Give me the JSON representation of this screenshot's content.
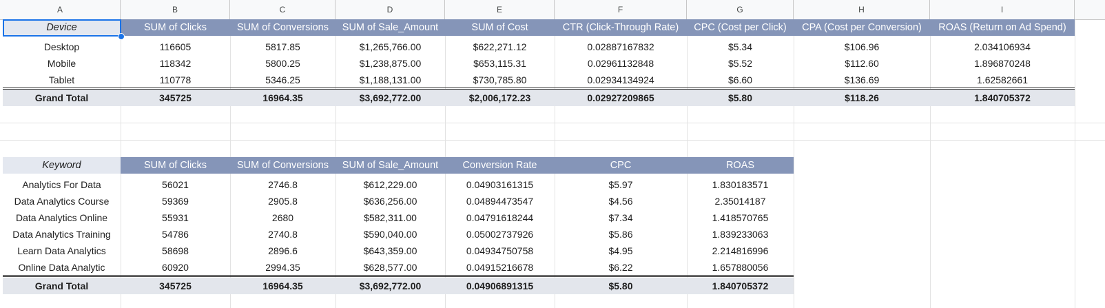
{
  "columns": [
    "A",
    "B",
    "C",
    "D",
    "E",
    "F",
    "G",
    "H",
    "I"
  ],
  "device_table": {
    "headers": [
      "Device",
      "SUM of Clicks",
      "SUM of Conversions",
      "SUM of Sale_Amount",
      "SUM of Cost",
      "CTR (Click-Through Rate)",
      "CPC (Cost per Click)",
      "CPA (Cost per Conversion)",
      "ROAS (Return on Ad Spend)"
    ],
    "rows": [
      [
        "Desktop",
        "116605",
        "5817.85",
        "$1,265,766.00",
        "$622,271.12",
        "0.02887167832",
        "$5.34",
        "$106.96",
        "2.034106934"
      ],
      [
        "Mobile",
        "118342",
        "5800.25",
        "$1,238,875.00",
        "$653,115.31",
        "0.02961132848",
        "$5.52",
        "$112.60",
        "1.896870248"
      ],
      [
        "Tablet",
        "110778",
        "5346.25",
        "$1,188,131.00",
        "$730,785.80",
        "0.02934134924",
        "$6.60",
        "$136.69",
        "1.62582661"
      ]
    ],
    "total": [
      "Grand Total",
      "345725",
      "16964.35",
      "$3,692,772.00",
      "$2,006,172.23",
      "0.02927209865",
      "$5.80",
      "$118.26",
      "1.840705372"
    ]
  },
  "keyword_table": {
    "headers": [
      "Keyword",
      "SUM of Clicks",
      "SUM of Conversions",
      "SUM of Sale_Amount",
      "Conversion Rate",
      "CPC",
      "ROAS"
    ],
    "rows": [
      [
        "Analytics For Data",
        "56021",
        "2746.8",
        "$612,229.00",
        "0.04903161315",
        "$5.97",
        "1.830183571"
      ],
      [
        "Data Analytics Course",
        "59369",
        "2905.8",
        "$636,256.00",
        "0.04894473547",
        "$4.56",
        "2.35014187"
      ],
      [
        "Data Analytics Online",
        "55931",
        "2680",
        "$582,311.00",
        "0.04791618244",
        "$7.34",
        "1.418570765"
      ],
      [
        "Data Analytics Training",
        "54786",
        "2740.8",
        "$590,040.00",
        "0.05002737926",
        "$5.86",
        "1.839233063"
      ],
      [
        "Learn Data Analytics",
        "58698",
        "2896.6",
        "$643,359.00",
        "0.04934750758",
        "$4.95",
        "2.214816996"
      ],
      [
        "Online Data Analytic",
        "60920",
        "2994.35",
        "$628,577.00",
        "0.04915216678",
        "$6.22",
        "1.657880056"
      ]
    ],
    "total": [
      "Grand Total",
      "345725",
      "16964.35",
      "$3,692,772.00",
      "0.04906891315",
      "$5.80",
      "1.840705372"
    ]
  }
}
